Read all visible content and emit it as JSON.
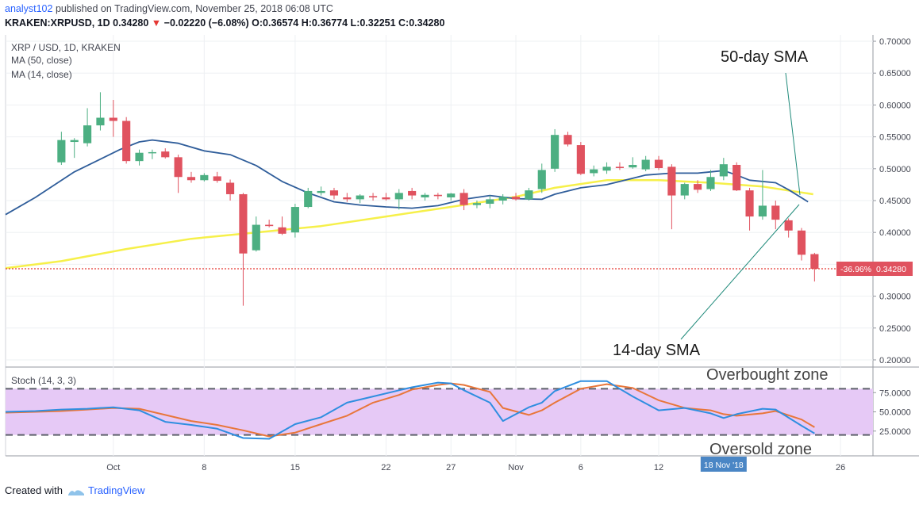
{
  "header": {
    "author": "analyst102",
    "published": " published on TradingView.com, November 25, 2018 06:08 UTC",
    "symbol_line_prefix": "KRAKEN:XRPUSD, 1D 0.34280",
    "change_arrow": "▼",
    "change": "−0.02220 (−6.08%)",
    "ohlc": "O:0.36574 H:0.36774 L:0.32251 C:0.34280"
  },
  "legend": {
    "title": "XRP / USD, 1D, KRAKEN",
    "ma50": "MA (50, close)",
    "ma14": "MA (14, close)",
    "stoch": "Stoch (14, 3, 3)"
  },
  "annotations": {
    "sma50": "50-day SMA",
    "sma14": "14-day SMA",
    "overbought": "Overbought zone",
    "oversold": "Oversold zone"
  },
  "price_badge": {
    "pct": "-36.96%",
    "price": "0.34280"
  },
  "date_badge": "18 Nov '18",
  "footer": {
    "created": "Created with",
    "brand": "TradingView"
  },
  "colors": {
    "up": "#4caf82",
    "down": "#e0525f",
    "ma50": "#f6f04a",
    "ma14": "#2f5d9a",
    "stoch_k": "#2f8ee0",
    "stoch_d": "#e8763a",
    "stoch_band": "#e6c9f6",
    "price_line": "#e53935"
  },
  "chart_data": {
    "type": "candlestick",
    "price_axis": {
      "ylim": [
        0.19,
        0.71
      ],
      "ticks": [
        "0.20000",
        "0.25000",
        "0.30000",
        "0.35000",
        "0.40000",
        "0.45000",
        "0.50000",
        "0.55000",
        "0.60000",
        "0.65000",
        "0.70000"
      ]
    },
    "x_axis": {
      "xlim": [
        -4.3,
        62.5
      ],
      "ticks": [
        {
          "label": "Oct",
          "x": 4
        },
        {
          "label": "8",
          "x": 11
        },
        {
          "label": "15",
          "x": 18
        },
        {
          "label": "22",
          "x": 25
        },
        {
          "label": "27",
          "x": 30
        },
        {
          "label": "Nov",
          "x": 35
        },
        {
          "label": "6",
          "x": 40
        },
        {
          "label": "12",
          "x": 46
        },
        {
          "label": "26",
          "x": 60
        }
      ]
    },
    "candles": [
      {
        "x": 0,
        "o": 0.51,
        "h": 0.558,
        "l": 0.506,
        "c": 0.545
      },
      {
        "x": 1,
        "o": 0.542,
        "h": 0.548,
        "l": 0.517,
        "c": 0.545
      },
      {
        "x": 2,
        "o": 0.54,
        "h": 0.595,
        "l": 0.535,
        "c": 0.568
      },
      {
        "x": 3,
        "o": 0.568,
        "h": 0.62,
        "l": 0.56,
        "c": 0.58
      },
      {
        "x": 4,
        "o": 0.58,
        "h": 0.608,
        "l": 0.55,
        "c": 0.575
      },
      {
        "x": 5,
        "o": 0.575,
        "h": 0.581,
        "l": 0.508,
        "c": 0.512
      },
      {
        "x": 6,
        "o": 0.512,
        "h": 0.53,
        "l": 0.505,
        "c": 0.525
      },
      {
        "x": 7,
        "o": 0.525,
        "h": 0.53,
        "l": 0.515,
        "c": 0.526
      },
      {
        "x": 8,
        "o": 0.527,
        "h": 0.532,
        "l": 0.516,
        "c": 0.518
      },
      {
        "x": 9,
        "o": 0.518,
        "h": 0.522,
        "l": 0.462,
        "c": 0.487
      },
      {
        "x": 10,
        "o": 0.487,
        "h": 0.495,
        "l": 0.478,
        "c": 0.482
      },
      {
        "x": 11,
        "o": 0.482,
        "h": 0.493,
        "l": 0.48,
        "c": 0.49
      },
      {
        "x": 12,
        "o": 0.488,
        "h": 0.495,
        "l": 0.478,
        "c": 0.481
      },
      {
        "x": 13,
        "o": 0.478,
        "h": 0.483,
        "l": 0.45,
        "c": 0.46
      },
      {
        "x": 14,
        "o": 0.46,
        "h": 0.462,
        "l": 0.285,
        "c": 0.367
      },
      {
        "x": 15,
        "o": 0.372,
        "h": 0.425,
        "l": 0.37,
        "c": 0.412
      },
      {
        "x": 16,
        "o": 0.412,
        "h": 0.42,
        "l": 0.408,
        "c": 0.41
      },
      {
        "x": 17,
        "o": 0.408,
        "h": 0.425,
        "l": 0.396,
        "c": 0.398
      },
      {
        "x": 18,
        "o": 0.4,
        "h": 0.445,
        "l": 0.392,
        "c": 0.44
      },
      {
        "x": 19,
        "o": 0.44,
        "h": 0.47,
        "l": 0.438,
        "c": 0.465
      },
      {
        "x": 20,
        "o": 0.462,
        "h": 0.472,
        "l": 0.458,
        "c": 0.465
      },
      {
        "x": 21,
        "o": 0.466,
        "h": 0.47,
        "l": 0.452,
        "c": 0.458
      },
      {
        "x": 22,
        "o": 0.455,
        "h": 0.462,
        "l": 0.448,
        "c": 0.452
      },
      {
        "x": 23,
        "o": 0.452,
        "h": 0.46,
        "l": 0.446,
        "c": 0.458
      },
      {
        "x": 24,
        "o": 0.457,
        "h": 0.462,
        "l": 0.45,
        "c": 0.455
      },
      {
        "x": 25,
        "o": 0.455,
        "h": 0.462,
        "l": 0.45,
        "c": 0.452
      },
      {
        "x": 26,
        "o": 0.452,
        "h": 0.468,
        "l": 0.436,
        "c": 0.462
      },
      {
        "x": 27,
        "o": 0.465,
        "h": 0.47,
        "l": 0.452,
        "c": 0.458
      },
      {
        "x": 28,
        "o": 0.455,
        "h": 0.462,
        "l": 0.45,
        "c": 0.459
      },
      {
        "x": 29,
        "o": 0.459,
        "h": 0.462,
        "l": 0.452,
        "c": 0.457
      },
      {
        "x": 30,
        "o": 0.455,
        "h": 0.462,
        "l": 0.45,
        "c": 0.461
      },
      {
        "x": 31,
        "o": 0.462,
        "h": 0.468,
        "l": 0.435,
        "c": 0.443
      },
      {
        "x": 32,
        "o": 0.443,
        "h": 0.45,
        "l": 0.438,
        "c": 0.446
      },
      {
        "x": 33,
        "o": 0.445,
        "h": 0.458,
        "l": 0.438,
        "c": 0.452
      },
      {
        "x": 34,
        "o": 0.45,
        "h": 0.46,
        "l": 0.444,
        "c": 0.456
      },
      {
        "x": 35,
        "o": 0.456,
        "h": 0.462,
        "l": 0.45,
        "c": 0.452
      },
      {
        "x": 36,
        "o": 0.452,
        "h": 0.47,
        "l": 0.45,
        "c": 0.466
      },
      {
        "x": 37,
        "o": 0.468,
        "h": 0.508,
        "l": 0.462,
        "c": 0.498
      },
      {
        "x": 38,
        "o": 0.5,
        "h": 0.562,
        "l": 0.495,
        "c": 0.553
      },
      {
        "x": 39,
        "o": 0.553,
        "h": 0.558,
        "l": 0.535,
        "c": 0.538
      },
      {
        "x": 40,
        "o": 0.537,
        "h": 0.542,
        "l": 0.49,
        "c": 0.492
      },
      {
        "x": 41,
        "o": 0.493,
        "h": 0.505,
        "l": 0.488,
        "c": 0.499
      },
      {
        "x": 42,
        "o": 0.497,
        "h": 0.51,
        "l": 0.492,
        "c": 0.503
      },
      {
        "x": 43,
        "o": 0.503,
        "h": 0.51,
        "l": 0.498,
        "c": 0.501
      },
      {
        "x": 44,
        "o": 0.502,
        "h": 0.518,
        "l": 0.5,
        "c": 0.506
      },
      {
        "x": 45,
        "o": 0.499,
        "h": 0.52,
        "l": 0.496,
        "c": 0.514
      },
      {
        "x": 46,
        "o": 0.514,
        "h": 0.52,
        "l": 0.498,
        "c": 0.501
      },
      {
        "x": 47,
        "o": 0.503,
        "h": 0.507,
        "l": 0.405,
        "c": 0.458
      },
      {
        "x": 48,
        "o": 0.458,
        "h": 0.478,
        "l": 0.452,
        "c": 0.476
      },
      {
        "x": 49,
        "o": 0.476,
        "h": 0.482,
        "l": 0.462,
        "c": 0.467
      },
      {
        "x": 50,
        "o": 0.468,
        "h": 0.498,
        "l": 0.465,
        "c": 0.487
      },
      {
        "x": 51,
        "o": 0.488,
        "h": 0.517,
        "l": 0.482,
        "c": 0.507
      },
      {
        "x": 52,
        "o": 0.506,
        "h": 0.51,
        "l": 0.465,
        "c": 0.466
      },
      {
        "x": 53,
        "o": 0.466,
        "h": 0.47,
        "l": 0.403,
        "c": 0.425
      },
      {
        "x": 54,
        "o": 0.425,
        "h": 0.498,
        "l": 0.42,
        "c": 0.442
      },
      {
        "x": 55,
        "o": 0.442,
        "h": 0.45,
        "l": 0.405,
        "c": 0.42
      },
      {
        "x": 56,
        "o": 0.419,
        "h": 0.422,
        "l": 0.392,
        "c": 0.403
      },
      {
        "x": 57,
        "o": 0.403,
        "h": 0.407,
        "l": 0.356,
        "c": 0.365
      },
      {
        "x": 58,
        "o": 0.366,
        "h": 0.368,
        "l": 0.323,
        "c": 0.343
      }
    ],
    "ma50": {
      "x": [
        -4.3,
        0,
        5,
        10,
        15,
        20,
        25,
        30,
        35,
        38,
        42,
        46,
        50,
        54,
        57.9
      ],
      "y": [
        0.344,
        0.355,
        0.374,
        0.39,
        0.4,
        0.41,
        0.425,
        0.44,
        0.456,
        0.47,
        0.482,
        0.482,
        0.478,
        0.472,
        0.46
      ]
    },
    "ma14": {
      "x": [
        -4.3,
        -2,
        1,
        3,
        4.5,
        6,
        7,
        9,
        11,
        13,
        15,
        17,
        19,
        21,
        23,
        25,
        27,
        29,
        31,
        33,
        35,
        37,
        38,
        40,
        42,
        44,
        45,
        47,
        49,
        51,
        52,
        53,
        55,
        56,
        57.5
      ],
      "y": [
        0.428,
        0.455,
        0.495,
        0.515,
        0.53,
        0.542,
        0.545,
        0.54,
        0.528,
        0.522,
        0.505,
        0.48,
        0.462,
        0.448,
        0.443,
        0.44,
        0.438,
        0.442,
        0.452,
        0.458,
        0.453,
        0.452,
        0.46,
        0.47,
        0.475,
        0.485,
        0.49,
        0.493,
        0.493,
        0.497,
        0.49,
        0.482,
        0.478,
        0.467,
        0.448
      ]
    },
    "stoch": {
      "ylim": [
        0,
        100
      ],
      "ticks": [
        "25.0000",
        "50.0000",
        "75.0000"
      ],
      "overbought": 80,
      "oversold": 20,
      "k": {
        "x": [
          -4.3,
          -2,
          0,
          2,
          4,
          6,
          8,
          10,
          12,
          14,
          16,
          18,
          20,
          22,
          24,
          26,
          27,
          29,
          30,
          31,
          33,
          34,
          36,
          37,
          38,
          40,
          42,
          44,
          46,
          48,
          50,
          51,
          52,
          54,
          55,
          57,
          58
        ],
        "y": [
          50,
          51,
          53,
          54,
          56,
          52,
          37,
          33,
          28,
          16,
          15,
          34,
          43,
          62,
          70,
          78,
          82,
          88,
          87,
          78,
          62,
          38,
          56,
          62,
          77,
          90,
          90,
          70,
          52,
          55,
          48,
          42,
          47,
          54,
          53,
          32,
          22
        ]
      },
      "d": {
        "x": [
          -4.3,
          -2,
          0,
          2,
          4,
          6,
          8,
          10,
          12,
          14,
          16,
          18,
          20,
          22,
          24,
          26,
          27,
          29,
          30,
          31,
          33,
          34,
          36,
          37,
          38,
          40,
          42,
          44,
          46,
          48,
          50,
          51,
          52,
          54,
          55,
          57,
          58
        ],
        "y": [
          49,
          50,
          51,
          53,
          55,
          54,
          46,
          38,
          33,
          26,
          18,
          23,
          34,
          45,
          62,
          72,
          79,
          85,
          87,
          85,
          76,
          55,
          46,
          52,
          62,
          80,
          86,
          81,
          65,
          55,
          52,
          47,
          45,
          48,
          51,
          40,
          30
        ]
      }
    }
  }
}
